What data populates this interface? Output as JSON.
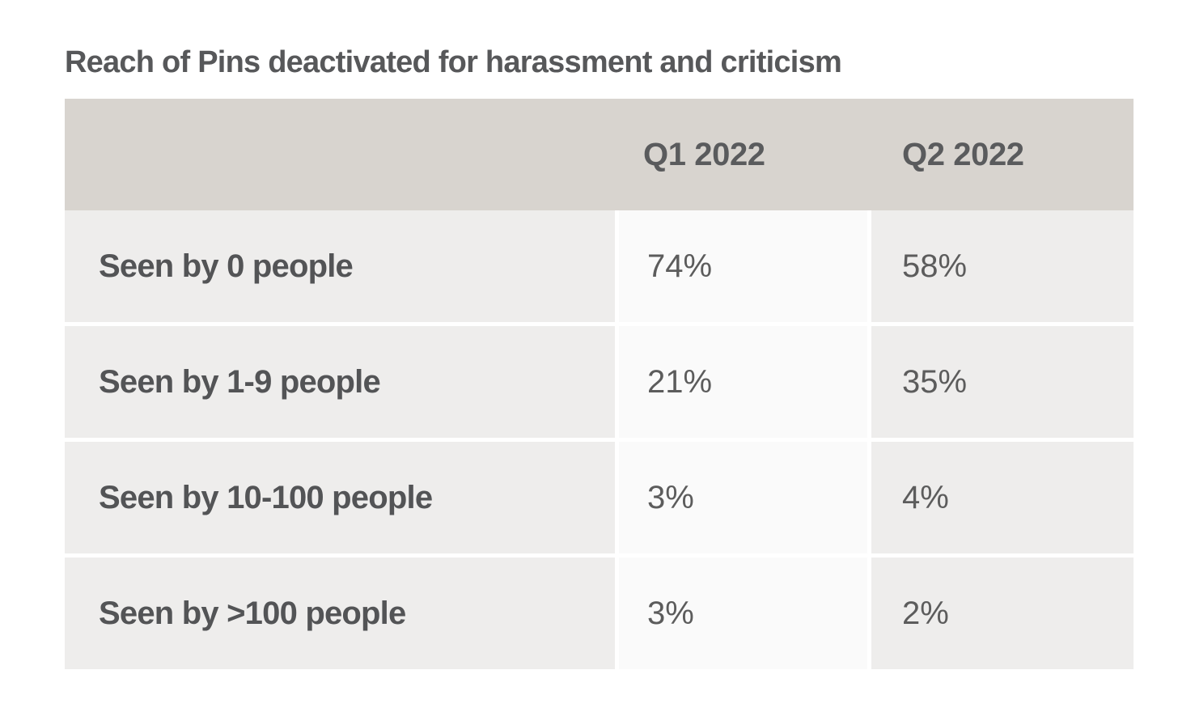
{
  "title": "Reach of Pins deactivated for harassment and criticism",
  "chart_data": {
    "type": "table",
    "title": "Reach of Pins deactivated for harassment and criticism",
    "columns": [
      "",
      "Q1 2022",
      "Q2 2022"
    ],
    "rows": [
      {
        "label": "Seen by 0 people",
        "values": [
          "74%",
          "58%"
        ]
      },
      {
        "label": "Seen by 1-9 people",
        "values": [
          "21%",
          "35%"
        ]
      },
      {
        "label": "Seen by 10-100 people",
        "values": [
          "3%",
          "4%"
        ]
      },
      {
        "label": "Seen by >100 people",
        "values": [
          "3%",
          "2%"
        ]
      }
    ],
    "legend_position": "none",
    "grid": false
  },
  "colors": {
    "page_bg": "#ffffff",
    "header_bg": "#d8d4cf",
    "label_col_bg": "#eeedec",
    "q1_col_bg": "#fafafa",
    "q2_col_bg": "#eeedec",
    "title_text": "#57585a",
    "header_text": "#5a5b5d",
    "label_text": "#535456",
    "value_text": "#5c5c5c"
  }
}
